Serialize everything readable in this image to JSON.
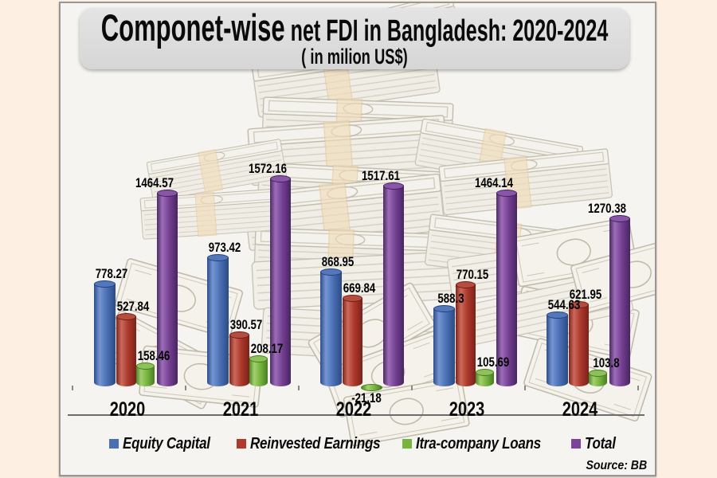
{
  "title": {
    "emphasis": "Componet-wise",
    "rest": "net FDI in Bangladesh: 2020-2024",
    "subtitle": "( in milion US$)"
  },
  "source_note": "Source: BB",
  "background_image": "stacks-of-us-dollar-bills",
  "colors": {
    "page_bg": "#fdf0e3",
    "panel_bg": "#f5f4f1",
    "title_box": "#dedede"
  },
  "chart_data": {
    "type": "bar",
    "title": "Componet-wise net FDI in Bangladesh: 2020-2024",
    "subtitle": "( in milion US$)",
    "categories": [
      "2020",
      "2021",
      "2022",
      "2023",
      "2024"
    ],
    "series": [
      {
        "name": "Equity Capital",
        "color": "#4a70b4",
        "values": [
          778.27,
          973.42,
          868.95,
          588.3,
          544.63
        ]
      },
      {
        "name": "Reinvested Earnings",
        "color": "#b0392e",
        "values": [
          527.84,
          390.57,
          669.84,
          770.15,
          621.95
        ]
      },
      {
        "name": "Itra-company Loans",
        "color": "#76b43e",
        "values": [
          158.46,
          208.17,
          -21.18,
          105.69,
          103.8
        ]
      },
      {
        "name": "Total",
        "color": "#7b4399",
        "values": [
          1464.57,
          1572.16,
          1517.61,
          1464.14,
          1270.38
        ]
      }
    ],
    "value_labels": true,
    "legend_position": "bottom",
    "grid": false,
    "ylim": [
      -50,
      1700
    ]
  }
}
